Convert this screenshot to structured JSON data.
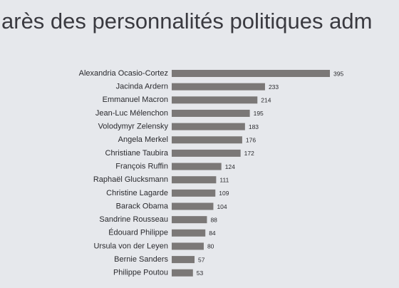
{
  "chart_data": {
    "type": "hbar",
    "title": "arès des personnalités politiques adm",
    "categories": [
      "Alexandria Ocasio-Cortez",
      "Jacinda Ardern",
      "Emmanuel Macron",
      "Jean-Luc Mélenchon",
      "Volodymyr Zelensky",
      "Angela Merkel",
      "Christiane Taubira",
      "François Ruffin",
      "Raphaël Glucksmann",
      "Christine Lagarde",
      "Barack Obama",
      "Sandrine Rousseau",
      "Édouard Philippe",
      "Ursula von der Leyen",
      "Bernie Sanders",
      "Philippe Poutou"
    ],
    "values": [
      395,
      233,
      214,
      195,
      183,
      176,
      172,
      124,
      111,
      109,
      104,
      88,
      84,
      80,
      57,
      53
    ],
    "color": "#7b7877"
  }
}
